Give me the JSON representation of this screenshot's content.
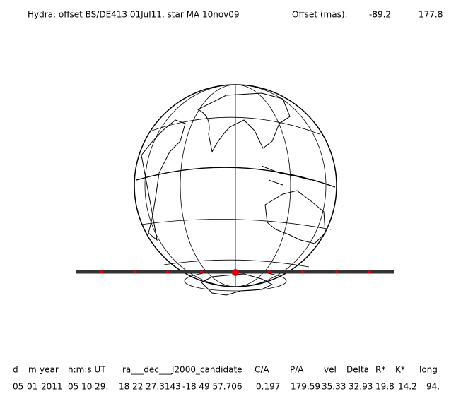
{
  "header": {
    "title": "Hydra: offset BS/DE413 01Jul11, star MA 10nov09",
    "offset_label": "Offset (mas):",
    "offset_values": [
      "-89.2",
      "177.8"
    ]
  },
  "table": {
    "columns": [
      "d",
      "m",
      "year",
      "h:m:s UT",
      "ra___dec___J2000_candidate",
      "C/A",
      "P/A",
      "vel",
      "Delta",
      "R*",
      "K*",
      "long"
    ],
    "row": [
      "05",
      "01",
      "2011",
      "05 10 29.",
      "18 22 27.3143",
      "-18 49 57.706",
      "0.197",
      "179.59",
      "35.33",
      "32.93",
      "19.8",
      "14.2",
      "94."
    ]
  }
}
